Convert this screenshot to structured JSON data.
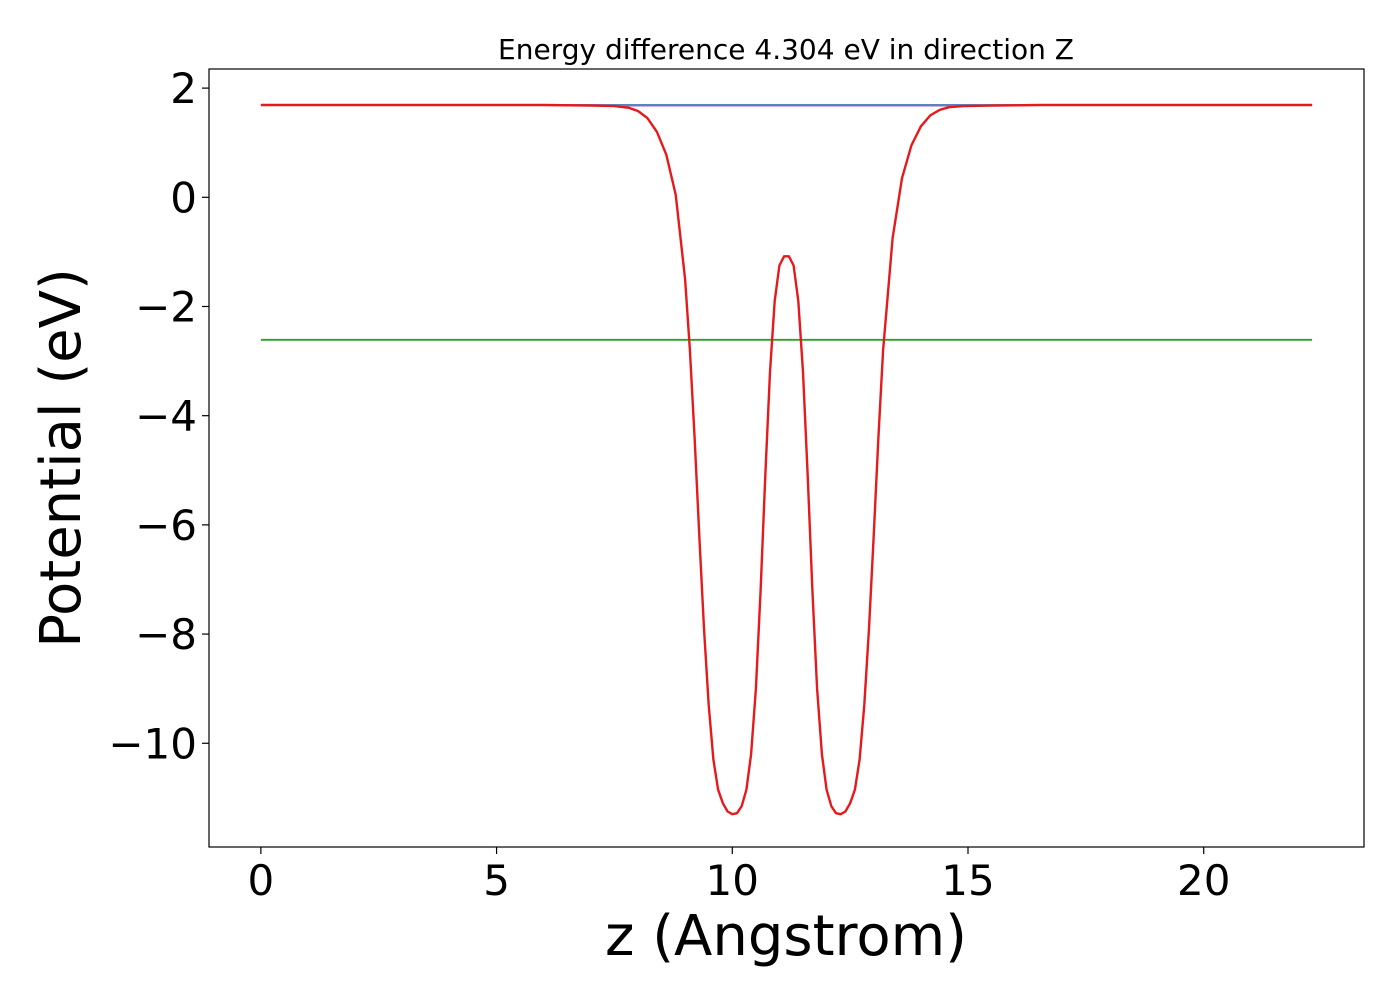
{
  "chart_data": {
    "type": "line",
    "title": "Energy difference 4.304 eV in direction Z",
    "xlabel": "z (Angstrom)",
    "ylabel": "Potential (eV)",
    "xlim": [
      -1.1,
      23.4
    ],
    "ylim": [
      -11.9,
      2.35
    ],
    "xticks": [
      0,
      5,
      10,
      15,
      20
    ],
    "xtick_labels": [
      "0",
      "5",
      "10",
      "15",
      "20"
    ],
    "yticks": [
      2,
      0,
      -2,
      -4,
      -6,
      -8,
      -10
    ],
    "ytick_labels": [
      "2",
      "0",
      "−2",
      "−4",
      "−6",
      "−8",
      "−10"
    ],
    "grid": false,
    "legend": "none",
    "series": [
      {
        "color": "#1f77b4",
        "x": [
          0,
          22.3
        ],
        "y": [
          1.69,
          1.69
        ]
      },
      {
        "color": "#2ca02c",
        "x": [
          0,
          22.3
        ],
        "y": [
          -2.61,
          -2.61
        ]
      },
      {
        "color": "#9467bd",
        "x": [
          0,
          5,
          7,
          7.6,
          15.1,
          16,
          18,
          22.3
        ],
        "y": [
          1.69,
          1.69,
          1.69,
          1.68,
          1.68,
          1.69,
          1.69,
          1.69
        ]
      },
      {
        "color": "#e41a1c",
        "x": [
          0,
          2,
          4,
          6,
          7,
          7.5,
          7.8,
          8.0,
          8.2,
          8.4,
          8.6,
          8.8,
          9.0,
          9.1,
          9.2,
          9.3,
          9.4,
          9.5,
          9.6,
          9.7,
          9.8,
          9.9,
          10.0,
          10.1,
          10.2,
          10.3,
          10.4,
          10.5,
          10.6,
          10.7,
          10.8,
          10.9,
          11.0,
          11.1,
          11.2,
          11.3,
          11.4,
          11.5,
          11.6,
          11.7,
          11.8,
          11.9,
          12.0,
          12.1,
          12.2,
          12.3,
          12.4,
          12.5,
          12.6,
          12.7,
          12.8,
          12.9,
          13.0,
          13.1,
          13.2,
          13.4,
          13.6,
          13.8,
          14.0,
          14.2,
          14.4,
          14.6,
          14.9,
          15.5,
          16.5,
          18,
          20,
          22.3
        ],
        "y": [
          1.69,
          1.69,
          1.69,
          1.69,
          1.68,
          1.67,
          1.64,
          1.58,
          1.45,
          1.2,
          0.78,
          0.05,
          -1.5,
          -2.8,
          -4.4,
          -6.2,
          -7.9,
          -9.3,
          -10.3,
          -10.85,
          -11.1,
          -11.25,
          -11.3,
          -11.28,
          -11.15,
          -10.85,
          -10.2,
          -9.0,
          -7.2,
          -5.1,
          -3.2,
          -1.9,
          -1.25,
          -1.08,
          -1.08,
          -1.25,
          -1.9,
          -3.2,
          -5.1,
          -7.2,
          -9.0,
          -10.2,
          -10.85,
          -11.15,
          -11.28,
          -11.3,
          -11.25,
          -11.1,
          -10.85,
          -10.3,
          -9.3,
          -7.9,
          -6.2,
          -4.4,
          -2.8,
          -0.75,
          0.35,
          0.95,
          1.3,
          1.5,
          1.6,
          1.65,
          1.67,
          1.68,
          1.69,
          1.69,
          1.69,
          1.69
        ]
      }
    ]
  }
}
